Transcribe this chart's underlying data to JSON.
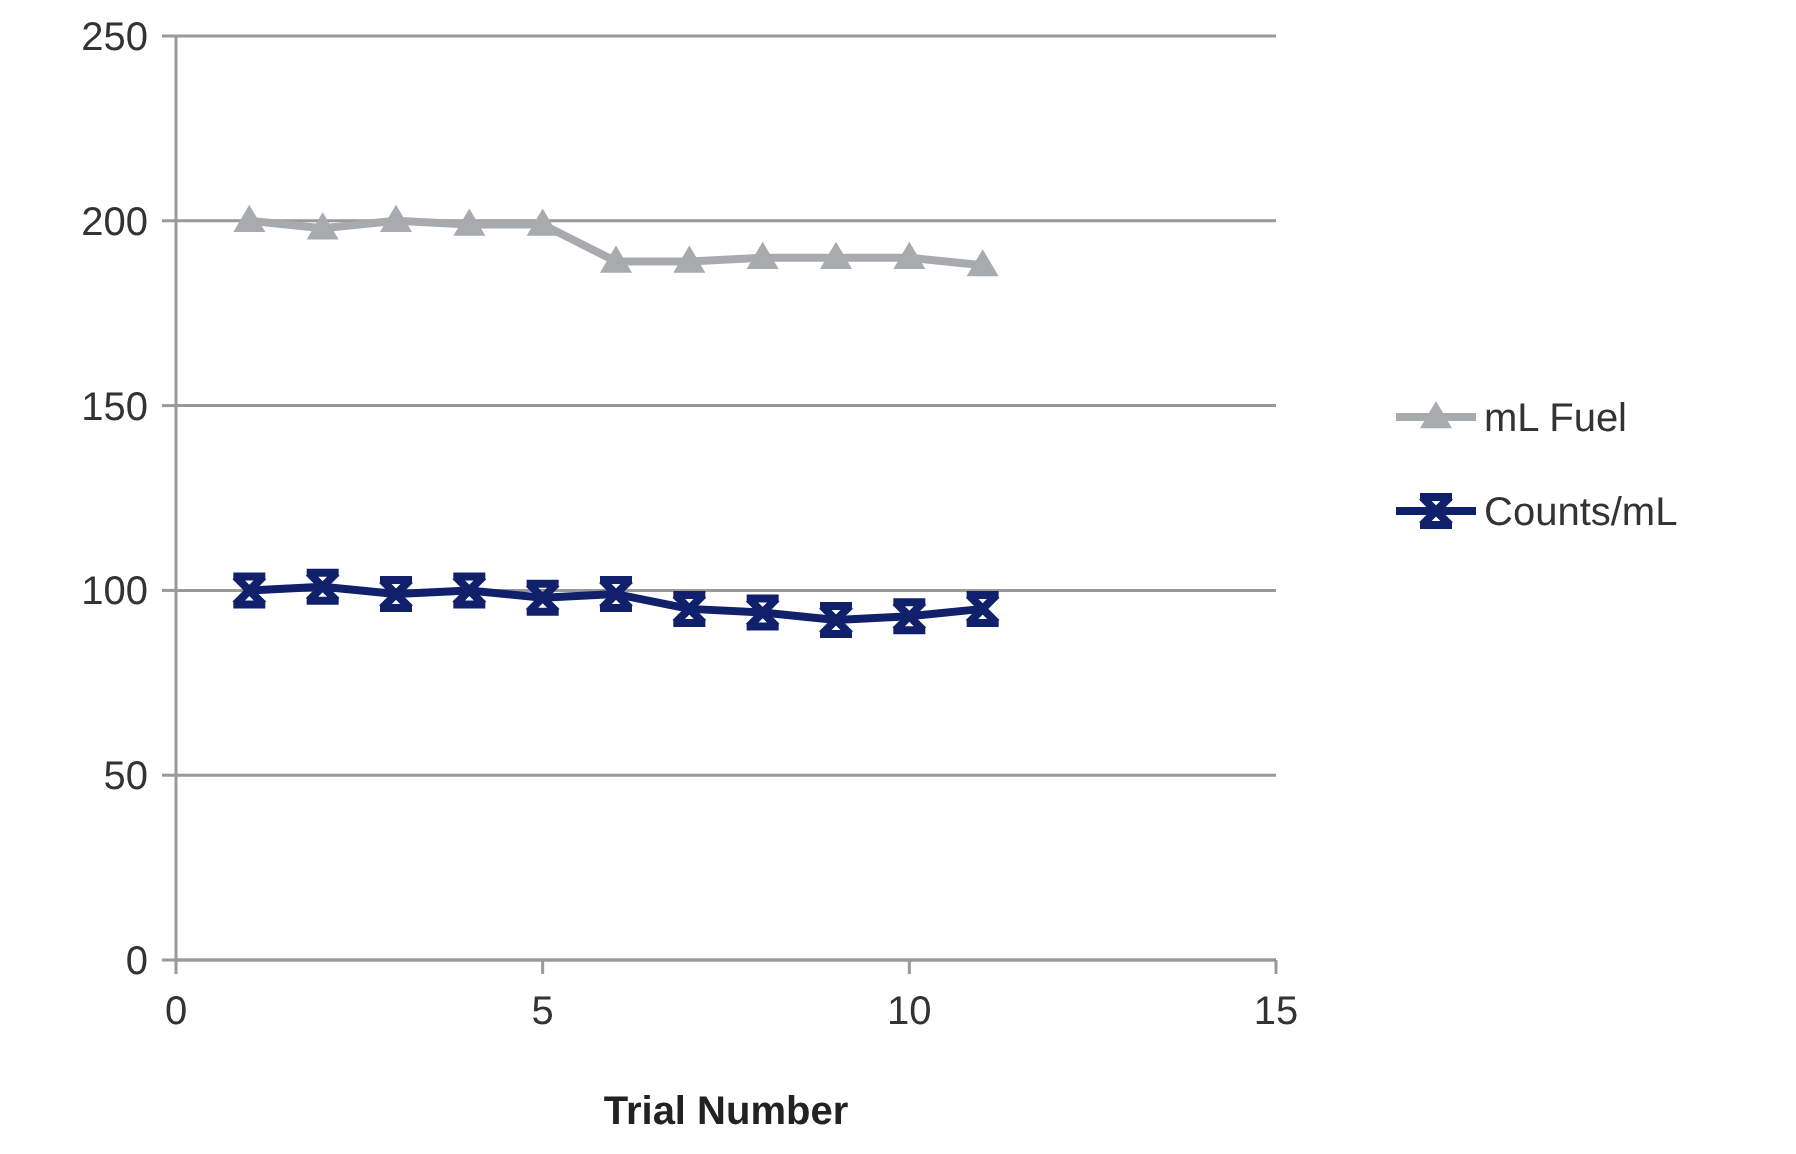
{
  "chart_data": {
    "type": "line",
    "xlabel": "Trial Number",
    "x": [
      1,
      2,
      3,
      4,
      5,
      6,
      7,
      8,
      9,
      10,
      11
    ],
    "series": [
      {
        "name": "mL Fuel",
        "color": "#a7abae",
        "marker": "triangle",
        "values": [
          200,
          198,
          200,
          199,
          199,
          189,
          189,
          190,
          190,
          190,
          188
        ]
      },
      {
        "name": "Counts/mL",
        "color": "#11206b",
        "marker": "cross",
        "values": [
          100,
          101,
          99,
          100,
          98,
          99,
          95,
          94,
          92,
          93,
          95
        ]
      }
    ],
    "xlim": [
      0,
      15
    ],
    "xticks": [
      0,
      5,
      10,
      15
    ],
    "ylim": [
      0,
      250
    ],
    "yticks": [
      0,
      50,
      100,
      150,
      200,
      250
    ],
    "grid": "y",
    "legend": "right",
    "line_style": "solid"
  }
}
